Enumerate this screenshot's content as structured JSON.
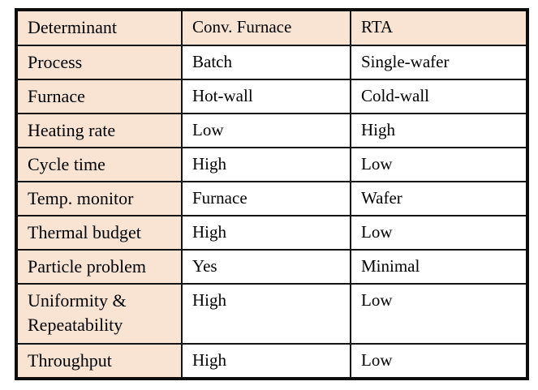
{
  "colors": {
    "cell_tint": "#f9e4d4",
    "border": "#141414",
    "outer_border": "#0d0d0d",
    "text": "#000000",
    "background": "#ffffff"
  },
  "table": {
    "headers": [
      "Determinant",
      "Conv. Furnace",
      "RTA"
    ],
    "rows": [
      [
        "Process",
        "Batch",
        "Single-wafer"
      ],
      [
        "Furnace",
        "Hot-wall",
        "Cold-wall"
      ],
      [
        "Heating rate",
        "Low",
        "High"
      ],
      [
        "Cycle time",
        "High",
        "Low"
      ],
      [
        "Temp. monitor",
        "Furnace",
        "Wafer"
      ],
      [
        "Thermal budget",
        "High",
        "Low"
      ],
      [
        "Particle problem",
        "Yes",
        "Minimal"
      ],
      [
        "Uniformity & Repeatability",
        "High",
        "Low"
      ],
      [
        "Throughput",
        "High",
        "Low"
      ]
    ]
  }
}
